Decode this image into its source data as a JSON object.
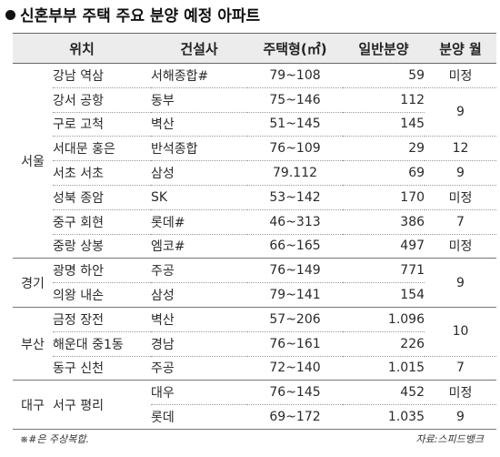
{
  "title": "신혼부부 주택 주요 분양 예정 아파트",
  "headers": {
    "region": "위치",
    "builder": "건설사",
    "size": "주택형(㎡)",
    "units": "일반분양",
    "month": "분양 월"
  },
  "rows": [
    {
      "region": "서울",
      "location": "강남 역삼",
      "builder": "서해종합#",
      "size_range": "79~108",
      "units": "59",
      "month": "미정"
    },
    {
      "location": "강서 공항",
      "builder": "동부",
      "size_range": "75~146",
      "units": "112",
      "month": "9"
    },
    {
      "location": "구로 고척",
      "builder": "벽산",
      "size_range": "51~145",
      "units": "145"
    },
    {
      "location": "서대문 홍은",
      "builder": "반석종합",
      "size_range": "76~109",
      "units": "29",
      "month": "12"
    },
    {
      "location": "서초 서초",
      "builder": "삼성",
      "size_range": "79.112",
      "units": "69",
      "month": "9"
    },
    {
      "location": "성북 종암",
      "builder": "SK",
      "size_range": "53~142",
      "units": "170",
      "month": "미정"
    },
    {
      "location": "중구 회현",
      "builder": "롯데#",
      "size_range": "46~313",
      "units": "386",
      "month": "7"
    },
    {
      "location": "중랑 상봉",
      "builder": "엠코#",
      "size_range": "66~165",
      "units": "497",
      "month": "미정"
    },
    {
      "region": "경기",
      "location": "광명 하안",
      "builder": "주공",
      "size_range": "76~149",
      "units": "771",
      "month": "9"
    },
    {
      "location": "의왕 내손",
      "builder": "삼성",
      "size_range": "79~141",
      "units": "154"
    },
    {
      "region": "부산",
      "location": "금정 장전",
      "builder": "벽산",
      "size_range": "57~206",
      "units": "1.096",
      "month": "10"
    },
    {
      "location": "해운대 중1동",
      "builder": "경남",
      "size_range": "76~161",
      "units": "226"
    },
    {
      "location": "동구 신천",
      "builder": "주공",
      "size_range": "72~140",
      "units": "1.015",
      "month": "7"
    },
    {
      "region": "대구",
      "location": "서구 평리",
      "builder": "대우",
      "size_range": "76~145",
      "units": "452",
      "month": "미정"
    },
    {
      "builder": "롯데",
      "size_range": "69~172",
      "units": "1.035",
      "month": "9"
    }
  ],
  "footnote": "※#은 주상복합.",
  "source": "자료:스피드뱅크"
}
